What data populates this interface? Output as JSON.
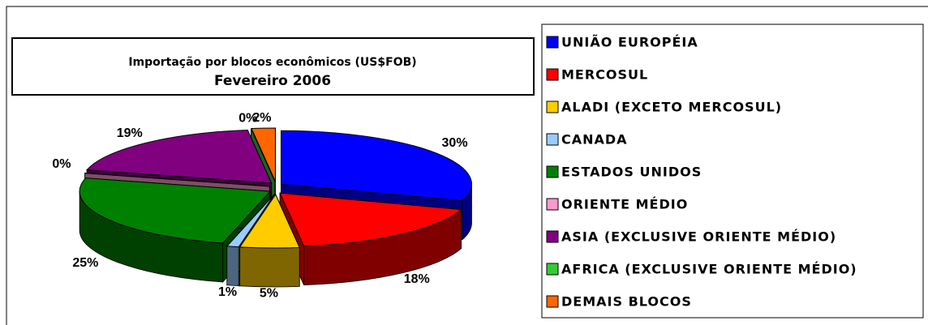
{
  "chart_data": {
    "type": "pie",
    "title": "Importação por blocos econômicos (US$FOB)",
    "subtitle": "Fevereiro 2006",
    "categories": [
      "UNIÃO EUROPÉIA",
      "MERCOSUL",
      "ALADI (EXCETO MERCOSUL)",
      "CANADA",
      "ESTADOS UNIDOS",
      "ORIENTE MÉDIO",
      "ASIA (EXCLUSIVE ORIENTE MÉDIO)",
      "AFRICA (EXCLUSIVE ORIENTE MÉDIO)",
      "DEMAIS BLOCOS"
    ],
    "values": [
      30,
      18,
      5,
      1,
      25,
      0,
      19,
      0,
      2
    ],
    "value_labels": [
      "30%",
      "18%",
      "5%",
      "1%",
      "25%",
      "0%",
      "19%",
      "0%",
      "2%"
    ],
    "colors": [
      "#0000ff",
      "#ff0000",
      "#ffcc00",
      "#99ccff",
      "#008000",
      "#ff99cc",
      "#800080",
      "#33cc33",
      "#ff6600"
    ],
    "legend": "right"
  }
}
